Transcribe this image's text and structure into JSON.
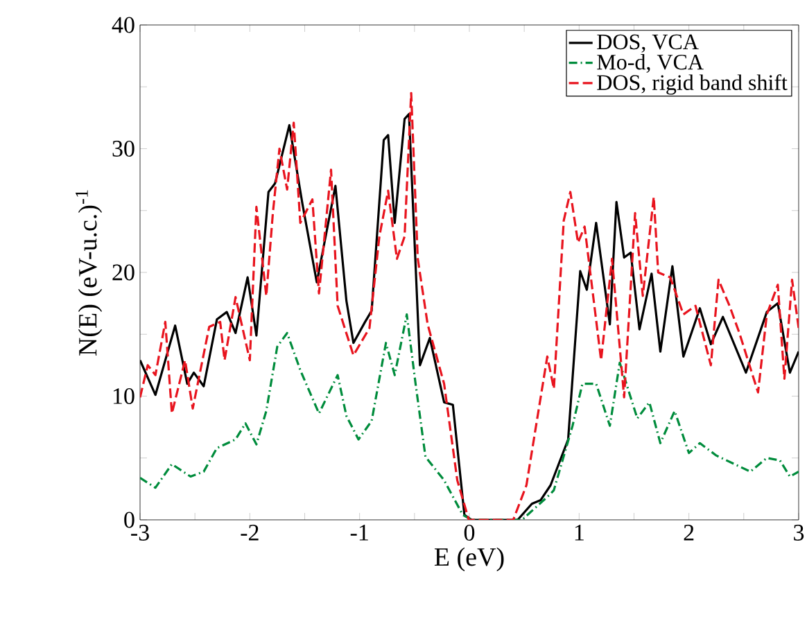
{
  "chart_data": {
    "type": "line",
    "xlabel": "E (eV)",
    "ylabel": "N(E) (eV-u.c.)$^{-1}$",
    "xlim": [
      -3,
      3
    ],
    "ylim": [
      0,
      40
    ],
    "xticks": [
      -3,
      {
        "value": -2.5,
        "label": null
      },
      -2,
      {
        "value": -1.5,
        "label": null
      },
      -1,
      {
        "value": -0.5,
        "label": null
      },
      0,
      {
        "value": 0.5,
        "label": null
      },
      1,
      {
        "value": 1.5,
        "label": null
      },
      2,
      {
        "value": 2.5,
        "label": null
      },
      3
    ],
    "yticks": [
      0,
      {
        "value": 5,
        "label": null
      },
      10,
      {
        "value": 15,
        "label": null
      },
      20,
      {
        "value": 25,
        "label": null
      },
      30,
      {
        "value": 35,
        "label": null
      },
      40
    ],
    "grid": false,
    "legend": "top right",
    "marker": "none",
    "series": [
      {
        "name": "DOS, VCA",
        "color": "#000000",
        "line_style": "solid",
        "x": [
          -3,
          -2.86,
          -2.68,
          -2.57,
          -2.51,
          -2.42,
          -2.3,
          -2.21,
          -2.13,
          -2.02,
          -1.94,
          -1.83,
          -1.77,
          -1.64,
          -1.52,
          -1.39,
          -1.22,
          -1.12,
          -1.056,
          -0.95,
          -0.89,
          -0.78,
          -0.74,
          -0.68,
          -0.59,
          -0.55,
          -0.45,
          -0.36,
          -0.23,
          -0.15,
          -0.045,
          0.02,
          0.44,
          0.57,
          0.65,
          0.74,
          0.9,
          1.01,
          1.07,
          1.155,
          1.28,
          1.34,
          1.41,
          1.47,
          1.55,
          1.66,
          1.74,
          1.85,
          1.95,
          2.1,
          2.2,
          2.31,
          2.52,
          2.71,
          2.81,
          2.92,
          3
        ],
        "values": [
          12.9,
          10.1,
          15.7,
          11.0,
          11.9,
          10.8,
          16.2,
          16.8,
          15.1,
          19.6,
          14.9,
          26.5,
          27.2,
          31.9,
          25.5,
          19.2,
          27.0,
          17.7,
          14.3,
          16.0,
          16.9,
          30.7,
          31.1,
          24.0,
          32.4,
          32.8,
          12.5,
          14.7,
          9.5,
          9.3,
          0.4,
          0,
          0,
          1.3,
          1.6,
          2.8,
          6.5,
          20.1,
          18.6,
          24.0,
          15.8,
          25.7,
          21.2,
          21.6,
          15.4,
          19.9,
          13.6,
          20.5,
          13.2,
          17.1,
          14.2,
          16.4,
          11.9,
          16.8,
          17.5,
          11.9,
          13.6
        ]
      },
      {
        "name": "Mo-d, VCA",
        "color": "#008c3c",
        "line_style": "dashdotted",
        "x": [
          -3,
          -2.86,
          -2.71,
          -2.54,
          -2.42,
          -2.3,
          -2.13,
          -2.04,
          -1.94,
          -1.85,
          -1.75,
          -1.66,
          -1.54,
          -1.37,
          -1.2,
          -1.12,
          -1.01,
          -0.89,
          -0.76,
          -0.68,
          -0.57,
          -0.49,
          -0.4,
          -0.23,
          -0.06,
          0.02,
          0.48,
          0.74,
          0.77,
          0.94,
          1.03,
          1.155,
          1.28,
          1.37,
          1.53,
          1.64,
          1.74,
          1.87,
          2.0,
          2.1,
          2.25,
          2.56,
          2.71,
          2.83,
          2.92,
          3
        ],
        "values": [
          3.4,
          2.6,
          4.5,
          3.5,
          3.9,
          5.8,
          6.5,
          7.8,
          6.1,
          8.8,
          14.0,
          15.1,
          12.1,
          8.6,
          11.7,
          8.4,
          6.5,
          8.0,
          14.3,
          11.7,
          16.6,
          11.0,
          5.1,
          3.2,
          0.4,
          0,
          0,
          2.1,
          2.4,
          7.6,
          11.0,
          11.0,
          7.6,
          12.7,
          8.2,
          9.5,
          6.2,
          8.8,
          5.4,
          6.2,
          5.2,
          3.9,
          5.0,
          4.8,
          3.5,
          3.9
        ]
      },
      {
        "name": "DOS, rigid band shift",
        "color": "#e8141e",
        "line_style": "dashed",
        "x": [
          -3,
          -2.93,
          -2.86,
          -2.77,
          -2.71,
          -2.59,
          -2.52,
          -2.37,
          -2.27,
          -2.23,
          -2.13,
          -2.0,
          -1.94,
          -1.85,
          -1.79,
          -1.73,
          -1.66,
          -1.6,
          -1.54,
          -1.43,
          -1.37,
          -1.26,
          -1.2,
          -1.056,
          -0.91,
          -0.82,
          -0.74,
          -0.66,
          -0.59,
          -0.53,
          -0.47,
          -0.38,
          -0.23,
          -0.11,
          -0.005,
          0.4,
          0.52,
          0.71,
          0.77,
          0.86,
          0.92,
          0.99,
          1.05,
          1.2,
          1.3,
          1.41,
          1.51,
          1.58,
          1.68,
          1.72,
          1.83,
          1.95,
          2.06,
          2.2,
          2.27,
          2.37,
          2.46,
          2.63,
          2.71,
          2.81,
          2.87,
          2.94,
          3
        ],
        "values": [
          9.9,
          12.5,
          11.7,
          16.0,
          8.6,
          12.9,
          9.0,
          15.6,
          16.0,
          12.9,
          18.0,
          12.9,
          25.3,
          18.1,
          24.8,
          30.0,
          26.7,
          32.1,
          24.0,
          25.9,
          18.3,
          28.3,
          17.3,
          13.3,
          15.5,
          22.9,
          26.6,
          21.1,
          22.9,
          34.5,
          21.1,
          15.8,
          11.0,
          3.2,
          0,
          0,
          2.8,
          13.2,
          10.6,
          24.2,
          26.5,
          22.4,
          23.7,
          12.9,
          21.1,
          9.9,
          24.8,
          18.1,
          26.1,
          20.0,
          19.6,
          16.6,
          17.3,
          12.5,
          19.4,
          17.3,
          15.1,
          10.3,
          16.6,
          19.0,
          11.4,
          19.4,
          15.5
        ]
      }
    ]
  }
}
